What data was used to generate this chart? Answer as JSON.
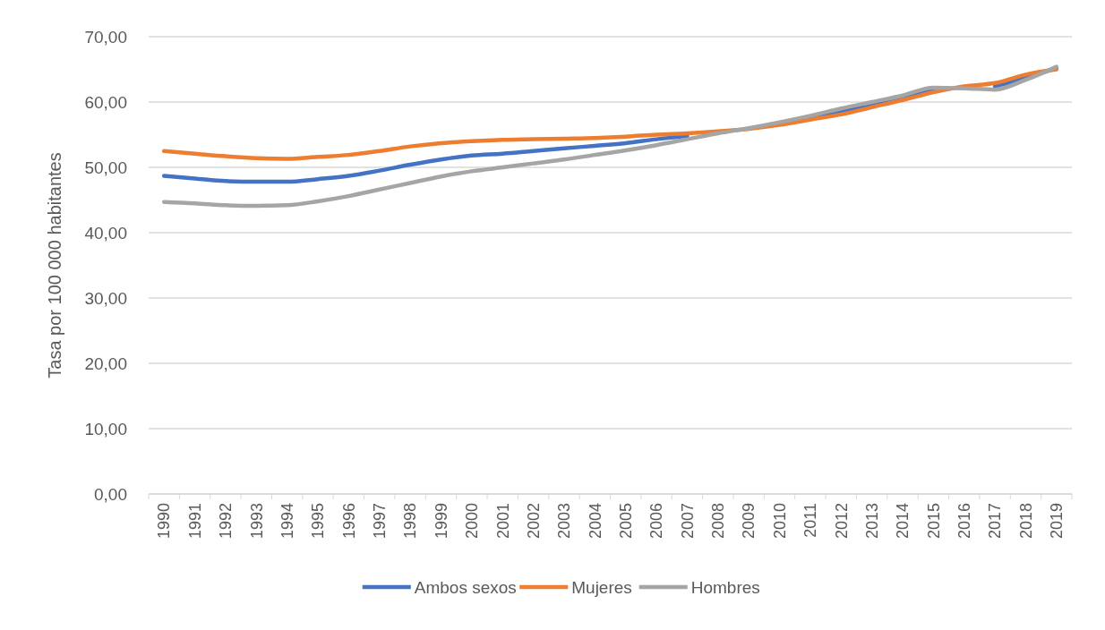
{
  "chart_data": {
    "type": "line",
    "ylabel": "Tasa por 100 000 habitantes",
    "categories": [
      "1990",
      "1991",
      "1992",
      "1993",
      "1994",
      "1995",
      "1996",
      "1997",
      "1998",
      "1999",
      "2000",
      "2001",
      "2002",
      "2003",
      "2004",
      "2005",
      "2006",
      "2007",
      "2008",
      "2009",
      "2010",
      "2011",
      "2012",
      "2013",
      "2014",
      "2015",
      "2016",
      "2017",
      "2018",
      "2019"
    ],
    "series": [
      {
        "name": "Ambos sexos",
        "color": "#4472c4",
        "values": [
          48.7,
          48.3,
          47.9,
          47.8,
          47.8,
          48.2,
          48.7,
          49.5,
          50.4,
          51.2,
          51.8,
          52.1,
          52.5,
          52.9,
          53.3,
          53.7,
          54.3,
          54.8,
          null,
          null,
          null,
          57.6,
          58.5,
          59.5,
          60.6,
          61.9,
          null,
          62.4,
          63.7,
          65.2
        ]
      },
      {
        "name": "Mujeres",
        "color": "#ed7d31",
        "values": [
          52.5,
          52.1,
          51.7,
          51.4,
          51.3,
          51.6,
          51.9,
          52.5,
          53.2,
          53.7,
          54.0,
          54.2,
          54.3,
          54.4,
          54.5,
          54.7,
          55.0,
          55.2,
          55.5,
          55.9,
          56.5,
          57.3,
          58.1,
          59.2,
          60.3,
          61.5,
          62.4,
          62.9,
          64.2,
          65.0
        ]
      },
      {
        "name": "Hombres",
        "color": "#a5a5a5",
        "values": [
          44.7,
          44.5,
          44.2,
          44.1,
          44.2,
          44.8,
          45.6,
          46.6,
          47.6,
          48.6,
          49.4,
          50.0,
          50.6,
          51.2,
          51.9,
          52.6,
          53.4,
          54.3,
          55.2,
          56.0,
          56.9,
          57.9,
          59.0,
          60.0,
          61.0,
          62.2,
          62.1,
          61.9,
          63.4,
          65.4
        ]
      }
    ],
    "ylim": [
      0,
      70
    ],
    "yticks": [
      {
        "value": 0,
        "label": "0,00"
      },
      {
        "value": 10,
        "label": "10,00"
      },
      {
        "value": 20,
        "label": "20,00"
      },
      {
        "value": 30,
        "label": "30,00"
      },
      {
        "value": 40,
        "label": "40,00"
      },
      {
        "value": 50,
        "label": "50,00"
      },
      {
        "value": 60,
        "label": "60,00"
      },
      {
        "value": 70,
        "label": "70,00"
      }
    ],
    "grid": "y",
    "legend": "bottom",
    "marker": "none",
    "line_style": "solid"
  }
}
